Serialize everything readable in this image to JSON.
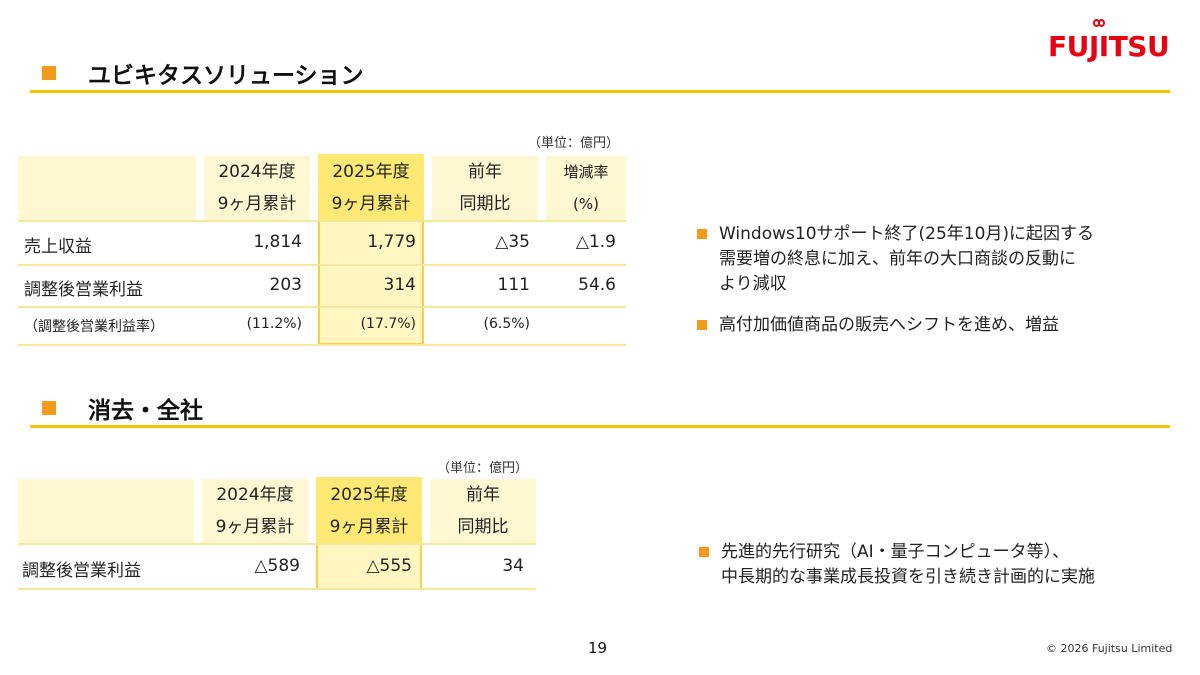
{
  "logo": "FUJITSU",
  "section1": {
    "title": "ユビキタスソリューション",
    "unit": "（単位：億円）",
    "headers": [
      [
        "2024年度",
        "9ヶ月累計"
      ],
      [
        "2025年度",
        "9ヶ月累計"
      ],
      [
        "前年",
        "同期比"
      ],
      [
        "増減率",
        "(%)"
      ]
    ],
    "rows": [
      {
        "label": "売上収益",
        "values": [
          "1,814",
          "1,779",
          "△35",
          "△1.9"
        ]
      },
      {
        "label": "調整後営業利益",
        "values": [
          "203",
          "314",
          "111",
          "54.6"
        ]
      },
      {
        "label": "（調整後営業利益率）",
        "values": [
          "(11.2%)",
          "(17.7%)",
          "(6.5%)",
          ""
        ]
      }
    ],
    "bullets": [
      [
        "Windows10サポート終了(25年10月)に起因する",
        "需要増の終息に加え、前年の大口商談の反動に",
        "より減収"
      ],
      [
        "高付加価値商品の販売へシフトを進め、増益"
      ]
    ]
  },
  "section2": {
    "title": "消去・全社",
    "unit": "（単位：億円）",
    "headers": [
      [
        "2024年度",
        "9ヶ月累計"
      ],
      [
        "2025年度",
        "9ヶ月累計"
      ],
      [
        "前年",
        "同期比"
      ]
    ],
    "rows": [
      {
        "label": "調整後営業利益",
        "values": [
          "△589",
          "△555",
          "34"
        ]
      }
    ],
    "bullets": [
      [
        "先進的先行研究（AI・量子コンピュータ等）、",
        "中長期的な事業成長投資を引き続き計画的に実施"
      ]
    ]
  },
  "footer": {
    "page": "19",
    "copyright": "© 2026 Fujitsu Limited"
  },
  "colors": {
    "accent_orange": "#f29b1b",
    "rule_yellow": "#f5c400",
    "highlight": "#fff6c2",
    "brand_red": "#e60012"
  }
}
